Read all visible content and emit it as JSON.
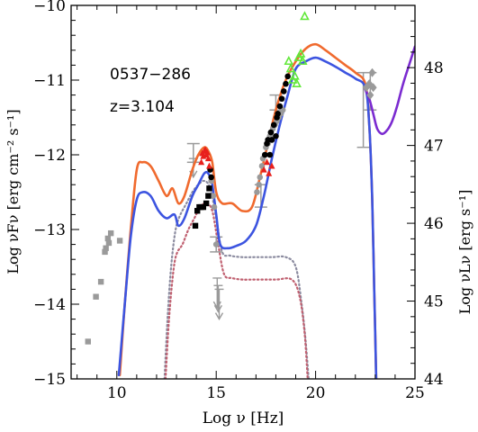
{
  "chart_data": {
    "type": "scatter",
    "annotations": [
      "0537−286",
      "z=3.104"
    ],
    "xlabel": "Log ν [Hz]",
    "ylabel": "Log νFν [erg cm⁻² s⁻¹]",
    "ylabel_right": "Log νLν [erg s⁻¹]",
    "xlim": [
      7.7,
      25
    ],
    "ylim": [
      -15,
      -10
    ],
    "ylim_right": [
      44,
      48.8
    ],
    "x_ticks": [
      "10",
      "15",
      "20",
      "25"
    ],
    "y_ticks": [
      "−15",
      "−14",
      "−13",
      "−12",
      "−11",
      "−10"
    ],
    "y_ticks_right": [
      "44",
      "45",
      "46",
      "47",
      "48"
    ],
    "colors": {
      "model_orange": "#f06a2e",
      "model_blue": "#3c54e0",
      "fermi_purple": "#7b2bd0",
      "grey_data": "#9a9a9a",
      "black_data": "#000000",
      "red_data": "#e8201c",
      "green_data": "#62e83a",
      "dotted_grey": "#8c8ca0",
      "dotted_red": "#c06070"
    },
    "series": [
      {
        "kind": "curve",
        "color": "model_orange",
        "x": [
          10.15,
          10.4,
          10.7,
          11.0,
          11.3,
          11.7,
          12.1,
          12.5,
          12.8,
          13.1,
          13.4,
          13.8,
          14.1,
          14.4,
          14.6,
          14.8,
          15.0,
          15.3,
          15.8,
          16.3,
          16.8,
          17.2,
          17.6,
          18.0,
          18.5,
          19.0,
          19.5,
          20.0,
          20.5,
          21.0,
          21.5,
          22.0,
          22.5,
          22.7,
          22.85,
          22.95,
          23.05
        ],
        "y": [
          -14.95,
          -14.0,
          -13.0,
          -12.2,
          -12.1,
          -12.15,
          -12.35,
          -12.55,
          -12.45,
          -12.65,
          -12.55,
          -12.2,
          -12.0,
          -11.9,
          -11.95,
          -12.1,
          -12.5,
          -12.65,
          -12.65,
          -12.75,
          -12.7,
          -12.3,
          -11.85,
          -11.4,
          -11.0,
          -10.75,
          -10.58,
          -10.52,
          -10.6,
          -10.7,
          -10.8,
          -10.9,
          -11.05,
          -11.6,
          -12.6,
          -13.8,
          -15.0
        ]
      },
      {
        "kind": "curve",
        "color": "model_blue",
        "x": [
          10.1,
          10.4,
          10.7,
          11.0,
          11.3,
          11.7,
          12.1,
          12.5,
          12.9,
          13.1,
          13.4,
          13.8,
          14.1,
          14.4,
          14.6,
          14.8,
          15.0,
          15.2,
          15.6,
          16.0,
          16.5,
          17.0,
          17.4,
          17.8,
          18.2,
          18.6,
          19.0,
          19.5,
          20.0,
          20.5,
          21.0,
          21.5,
          22.0,
          22.5,
          22.7,
          22.85,
          22.95,
          23.05
        ],
        "y": [
          -14.95,
          -14.0,
          -13.1,
          -12.6,
          -12.5,
          -12.55,
          -12.75,
          -12.85,
          -12.8,
          -12.95,
          -12.85,
          -12.55,
          -12.4,
          -12.25,
          -12.25,
          -12.4,
          -12.8,
          -13.2,
          -13.25,
          -13.22,
          -13.15,
          -12.95,
          -12.55,
          -12.05,
          -11.6,
          -11.2,
          -10.85,
          -10.75,
          -10.7,
          -10.75,
          -10.82,
          -10.9,
          -10.98,
          -11.1,
          -11.6,
          -12.6,
          -13.8,
          -15.0
        ]
      },
      {
        "kind": "curve",
        "color": "fermi_purple",
        "x": [
          22.45,
          22.7,
          22.9,
          23.1,
          23.35,
          23.6,
          23.85,
          24.1,
          24.4,
          24.7,
          25.0
        ],
        "y": [
          -11.1,
          -11.25,
          -11.45,
          -11.65,
          -11.72,
          -11.67,
          -11.55,
          -11.35,
          -11.05,
          -10.8,
          -10.55
        ]
      },
      {
        "kind": "curve",
        "style": "dotted",
        "color": "dotted_grey",
        "x": [
          12.4,
          12.55,
          12.7,
          12.85,
          13.0,
          13.2,
          13.5,
          13.8,
          14.1,
          14.4,
          14.7,
          15.0,
          15.3,
          15.7,
          16.3,
          17.0,
          17.8,
          18.5,
          19.0,
          19.3,
          19.5,
          19.65
        ],
        "y": [
          -15.0,
          -14.2,
          -13.6,
          -13.2,
          -12.95,
          -12.8,
          -12.65,
          -12.5,
          -12.4,
          -12.35,
          -12.45,
          -12.85,
          -13.3,
          -13.35,
          -13.37,
          -13.37,
          -13.37,
          -13.37,
          -13.5,
          -14.0,
          -14.5,
          -15.0
        ]
      },
      {
        "kind": "curve",
        "style": "dotted",
        "color": "dotted_red",
        "x": [
          12.45,
          12.6,
          12.75,
          12.9,
          13.05,
          13.3,
          13.6,
          13.9,
          14.2,
          14.5,
          14.8,
          15.1,
          15.4,
          15.8,
          16.3,
          17.0,
          18.0,
          18.8,
          19.2,
          19.45,
          19.6
        ],
        "y": [
          -15.0,
          -14.3,
          -13.8,
          -13.45,
          -13.3,
          -13.2,
          -13.0,
          -12.85,
          -12.7,
          -12.65,
          -12.75,
          -13.2,
          -13.6,
          -13.65,
          -13.67,
          -13.67,
          -13.67,
          -13.67,
          -13.9,
          -14.4,
          -15.0
        ]
      },
      {
        "kind": "points",
        "marker": "square",
        "color": "grey_data",
        "x": [
          8.55,
          8.95,
          9.2,
          9.4,
          9.45,
          9.55,
          9.6,
          9.7,
          10.15
        ],
        "y": [
          -14.5,
          -13.9,
          -13.7,
          -13.3,
          -13.25,
          -13.12,
          -13.18,
          -13.05,
          -13.15
        ]
      },
      {
        "kind": "points",
        "marker": "circle",
        "color": "grey_data",
        "x": [
          14.75,
          14.85,
          14.9,
          15.0,
          17.05,
          17.15,
          17.2,
          17.3,
          17.35,
          17.45,
          17.5,
          17.6,
          17.7,
          17.75,
          17.85,
          17.95,
          18.05,
          18.15,
          18.25,
          18.35
        ],
        "y": [
          -12.35,
          -12.55,
          -12.7,
          -13.2,
          -12.5,
          -12.4,
          -12.3,
          -12.15,
          -12.05,
          -12.0,
          -11.9,
          -11.85,
          -11.75,
          -11.7,
          -11.65,
          -11.6,
          -11.55,
          -11.5,
          -11.45,
          -11.4
        ]
      },
      {
        "kind": "points",
        "marker": "square",
        "color": "black_data",
        "x": [
          13.95,
          14.05,
          14.15,
          14.25,
          14.35,
          14.5,
          14.6,
          14.65
        ],
        "y": [
          -12.95,
          -12.75,
          -12.7,
          -12.7,
          -12.7,
          -12.65,
          -12.55,
          -12.45
        ]
      },
      {
        "kind": "points",
        "marker": "circle",
        "color": "black_data",
        "x": [
          14.7,
          14.75,
          17.45,
          17.55,
          17.6,
          17.7,
          17.75,
          17.8,
          17.9,
          18.0,
          18.05,
          18.1,
          18.2,
          18.3,
          18.4,
          18.5,
          18.6
        ],
        "y": [
          -12.2,
          -12.3,
          -12.0,
          -11.85,
          -11.8,
          -12.0,
          -11.7,
          -11.8,
          -11.6,
          -11.75,
          -11.5,
          -11.45,
          -11.35,
          -11.25,
          -11.15,
          -11.05,
          -10.95
        ]
      },
      {
        "kind": "points",
        "marker": "triangle",
        "color": "red_data",
        "x": [
          14.25,
          14.3,
          14.35,
          14.4,
          14.45,
          14.5,
          14.55,
          14.6,
          14.65,
          17.4,
          17.55,
          17.65,
          17.8
        ],
        "y": [
          -12.1,
          -11.98,
          -12.02,
          -11.95,
          -11.93,
          -12.0,
          -11.97,
          -12.05,
          -12.15,
          -12.2,
          -12.1,
          -12.25,
          -12.15
        ]
      },
      {
        "kind": "points",
        "marker": "open-triangle",
        "color": "green_data",
        "x": [
          18.65,
          18.75,
          18.85,
          18.95,
          19.05,
          19.15,
          19.25,
          19.35,
          19.45
        ],
        "y": [
          -10.75,
          -10.85,
          -11.0,
          -10.95,
          -11.05,
          -10.7,
          -10.65,
          -10.75,
          -10.15
        ]
      },
      {
        "kind": "points",
        "marker": "diamond",
        "color": "grey_data",
        "x": [
          22.55,
          22.7,
          22.75,
          22.85,
          22.9
        ],
        "y": [
          -11.1,
          -11.05,
          -11.2,
          -10.9,
          -11.1
        ]
      },
      {
        "kind": "errorbars",
        "color": "grey_data",
        "x": [
          13.85,
          15.0,
          17.25,
          18.0,
          22.4,
          22.75
        ],
        "y_low": [
          -12.1,
          -13.3,
          -12.7,
          -11.4,
          -11.9,
          -11.4
        ],
        "y_high": [
          -11.85,
          -13.1,
          -12.4,
          -11.2,
          -10.9,
          -10.9
        ]
      },
      {
        "kind": "upper_limits",
        "color": "grey_data",
        "x": [
          13.85,
          15.05,
          15.1,
          15.15
        ],
        "y": [
          -12.05,
          -13.65,
          -13.75,
          -13.8
        ],
        "y_end": [
          -12.3,
          -14.05,
          -14.1,
          -14.2
        ]
      }
    ]
  }
}
